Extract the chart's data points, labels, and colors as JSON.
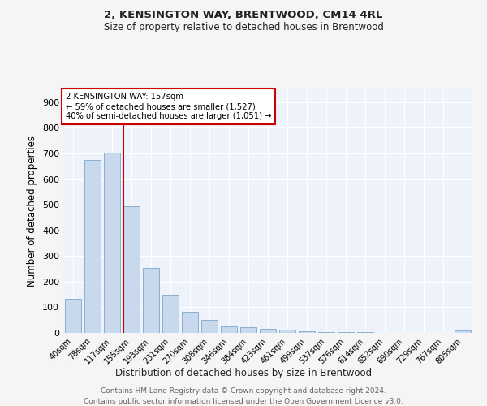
{
  "title1": "2, KENSINGTON WAY, BRENTWOOD, CM14 4RL",
  "title2": "Size of property relative to detached houses in Brentwood",
  "xlabel": "Distribution of detached houses by size in Brentwood",
  "ylabel": "Number of detached properties",
  "bar_labels": [
    "40sqm",
    "78sqm",
    "117sqm",
    "155sqm",
    "193sqm",
    "231sqm",
    "270sqm",
    "308sqm",
    "346sqm",
    "384sqm",
    "423sqm",
    "461sqm",
    "499sqm",
    "537sqm",
    "576sqm",
    "614sqm",
    "652sqm",
    "690sqm",
    "729sqm",
    "767sqm",
    "805sqm"
  ],
  "bar_values": [
    133,
    675,
    703,
    493,
    252,
    150,
    83,
    52,
    26,
    21,
    17,
    12,
    7,
    4,
    3,
    2,
    1,
    1,
    1,
    0,
    8
  ],
  "bar_color": "#c9d9ed",
  "bar_edge_color": "#7ba7cc",
  "marker_label": "2 KENSINGTON WAY: 157sqm",
  "annotation_line1": "← 59% of detached houses are smaller (1,527)",
  "annotation_line2": "40% of semi-detached houses are larger (1,051) →",
  "vline_color": "#cc0000",
  "ylim": [
    0,
    950
  ],
  "yticks": [
    0,
    100,
    200,
    300,
    400,
    500,
    600,
    700,
    800,
    900
  ],
  "background_color": "#eef2fa",
  "grid_color": "#ffffff",
  "footer1": "Contains HM Land Registry data © Crown copyright and database right 2024.",
  "footer2": "Contains public sector information licensed under the Open Government Licence v3.0."
}
